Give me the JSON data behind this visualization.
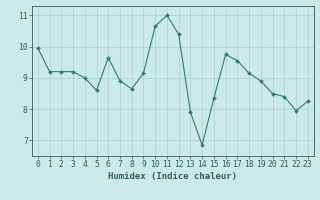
{
  "x": [
    0,
    1,
    2,
    3,
    4,
    5,
    6,
    7,
    8,
    9,
    10,
    11,
    12,
    13,
    14,
    15,
    16,
    17,
    18,
    19,
    20,
    21,
    22,
    23
  ],
  "y": [
    9.95,
    9.2,
    9.2,
    9.2,
    9.0,
    8.6,
    9.65,
    8.9,
    8.65,
    9.15,
    10.65,
    11.0,
    10.4,
    7.9,
    6.85,
    8.35,
    9.75,
    9.55,
    9.15,
    8.9,
    8.5,
    8.4,
    7.95,
    8.25
  ],
  "line_color": "#2e7d6e",
  "marker": "D",
  "marker_size": 2.0,
  "bg_color": "#cce9e9",
  "grid_color": "#b0d4d4",
  "xlabel": "Humidex (Indice chaleur)",
  "xlim": [
    -0.5,
    23.5
  ],
  "ylim": [
    6.5,
    11.3
  ],
  "yticks": [
    7,
    8,
    9,
    10,
    11
  ],
  "xticks": [
    0,
    1,
    2,
    3,
    4,
    5,
    6,
    7,
    8,
    9,
    10,
    11,
    12,
    13,
    14,
    15,
    16,
    17,
    18,
    19,
    20,
    21,
    22,
    23
  ],
  "tick_color": "#2e6060",
  "label_fontsize": 6.5,
  "tick_fontsize": 5.8
}
